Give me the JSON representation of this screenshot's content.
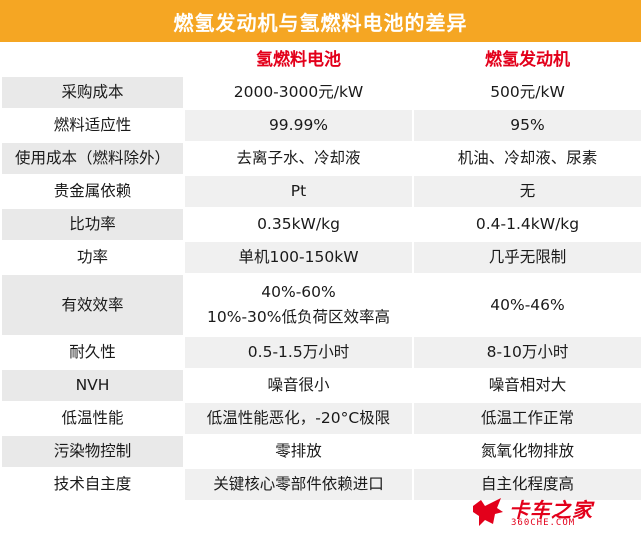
{
  "title": "燃氢发动机与氢燃料电池的差异",
  "columns": [
    "",
    "氢燃料电池",
    "燃氢发动机"
  ],
  "rows": [
    {
      "label": "采购成本",
      "a": "2000-3000元/kW",
      "b": "500元/kW"
    },
    {
      "label": "燃料适应性",
      "a": "99.99%",
      "b": "95%"
    },
    {
      "label": "使用成本（燃料除外）",
      "a": "去离子水、冷却液",
      "b": "机油、冷却液、尿素"
    },
    {
      "label": "贵金属依赖",
      "a": "Pt",
      "b": "无"
    },
    {
      "label": "比功率",
      "a": "0.35kW/kg",
      "b": "0.4-1.4kW/kg"
    },
    {
      "label": "功率",
      "a": "单机100-150kW",
      "b": "几乎无限制"
    },
    {
      "label": "有效效率",
      "a": "40%-60%",
      "a2": "10%-30%低负荷区效率高",
      "b": "40%-46%"
    },
    {
      "label": "耐久性",
      "a": "0.5-1.5万小时",
      "b": "8-10万小时"
    },
    {
      "label": "NVH",
      "a": "噪音很小",
      "b": "噪音相对大"
    },
    {
      "label": "低温性能",
      "a": "低温性能恶化，-20°C极限",
      "b": "低温工作正常"
    },
    {
      "label": "污染物控制",
      "a": "零排放",
      "b": "氮氧化物排放"
    },
    {
      "label": "技术自主度",
      "a": "关键核心零部件依赖进口",
      "b": "自主化程度高"
    }
  ],
  "watermark": {
    "brand": "卡车之家",
    "url": "360CHE.COM"
  },
  "colors": {
    "title_bg": "#f5a623",
    "header_text": "#e3001b",
    "stripe": "#e9e9e9"
  }
}
